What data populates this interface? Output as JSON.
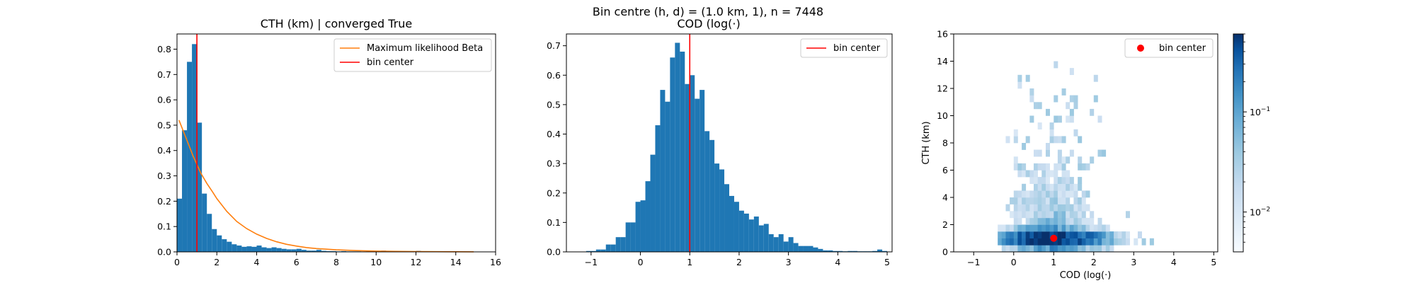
{
  "figure": {
    "suptitle": "Bin centre (h, d) = (1.0 km, 1), n = 7448"
  },
  "chart_data": [
    {
      "type": "bar",
      "title": "CTH (km) | converged True",
      "xlabel": "",
      "ylabel": "",
      "xlim": [
        0,
        16
      ],
      "ylim": [
        0,
        0.86
      ],
      "xticks": [
        0,
        2,
        4,
        6,
        8,
        10,
        12,
        14,
        16
      ],
      "yticks": [
        0.0,
        0.1,
        0.2,
        0.3,
        0.4,
        0.5,
        0.6,
        0.7,
        0.8
      ],
      "bin_edges_start": 0.0,
      "bin_width": 0.25,
      "values": [
        0.21,
        0.48,
        0.75,
        0.82,
        0.51,
        0.23,
        0.15,
        0.09,
        0.065,
        0.05,
        0.04,
        0.03,
        0.025,
        0.02,
        0.022,
        0.02,
        0.025,
        0.018,
        0.015,
        0.018,
        0.015,
        0.012,
        0.01,
        0.01,
        0.012,
        0.008,
        0.005,
        0.005,
        0.008,
        0.004,
        0.003,
        0.003,
        0.002,
        0.003,
        0.002,
        0.002,
        0.002,
        0.001,
        0.002,
        0.001,
        0.003,
        0.005,
        0.003,
        0.001,
        0.001,
        0.001,
        0.001,
        0.002,
        0.004,
        0.002,
        0.001,
        0.001,
        0.001,
        0.001,
        0.001,
        0.002,
        0.001,
        0.001,
        0.001,
        0.001
      ],
      "bar_color": "#1f77b4",
      "series": [
        {
          "name": "Maximum likelihood Beta",
          "color": "#ff7f0e",
          "x": [
            0.1,
            0.2,
            0.4,
            0.6,
            0.8,
            1.0,
            1.2,
            1.5,
            1.8,
            2.0,
            2.5,
            3.0,
            3.5,
            4.0,
            4.5,
            5.0,
            5.5,
            6.0,
            6.5,
            7.0,
            8.0,
            9.0,
            10.0,
            11.0,
            12.0,
            13.0,
            14.0,
            14.9
          ],
          "y": [
            0.52,
            0.5,
            0.46,
            0.42,
            0.38,
            0.345,
            0.31,
            0.27,
            0.235,
            0.21,
            0.16,
            0.12,
            0.092,
            0.07,
            0.053,
            0.04,
            0.03,
            0.023,
            0.017,
            0.013,
            0.008,
            0.005,
            0.003,
            0.002,
            0.001,
            0.0008,
            0.0005,
            0.0003
          ]
        }
      ],
      "vline": {
        "name": "bin center",
        "x": 1.0,
        "color": "#ff0000"
      },
      "legend_position": "top-right"
    },
    {
      "type": "bar",
      "title": "COD (log(·)",
      "xlabel": "",
      "ylabel": "",
      "xlim": [
        -1.5,
        5.1
      ],
      "ylim": [
        0,
        0.74
      ],
      "xticks": [
        -1,
        0,
        1,
        2,
        3,
        4,
        5
      ],
      "yticks": [
        0.0,
        0.1,
        0.2,
        0.3,
        0.4,
        0.5,
        0.6,
        0.7
      ],
      "bin_edges_start": -1.1,
      "bin_width": 0.1,
      "values": [
        0.003,
        0.003,
        0.008,
        0.008,
        0.025,
        0.025,
        0.05,
        0.05,
        0.1,
        0.1,
        0.17,
        0.175,
        0.24,
        0.33,
        0.43,
        0.55,
        0.51,
        0.66,
        0.71,
        0.68,
        0.57,
        0.6,
        0.52,
        0.55,
        0.41,
        0.38,
        0.3,
        0.28,
        0.23,
        0.19,
        0.17,
        0.14,
        0.13,
        0.11,
        0.12,
        0.09,
        0.095,
        0.06,
        0.05,
        0.06,
        0.035,
        0.05,
        0.03,
        0.02,
        0.02,
        0.02,
        0.015,
        0.01,
        0.005,
        0.005,
        0.003,
        0.003,
        0.002,
        0.003,
        0.003,
        0.002,
        0.002,
        0.002,
        0.003,
        0.008,
        0.003
      ],
      "bar_color": "#1f77b4",
      "vline": {
        "name": "bin center",
        "x": 1.0,
        "color": "#ff0000"
      },
      "legend_position": "top-right"
    },
    {
      "type": "heatmap",
      "title": "",
      "xlabel": "COD (log(·)",
      "ylabel": "CTH (km)",
      "xlim": [
        -1.5,
        5.1
      ],
      "ylim": [
        0,
        16
      ],
      "xticks": [
        -1,
        0,
        1,
        2,
        3,
        4,
        5
      ],
      "yticks": [
        0,
        2,
        4,
        6,
        8,
        10,
        12,
        14,
        16
      ],
      "colormap": "Blues",
      "color_scale": "log",
      "colorbar_range": [
        0.004,
        0.6
      ],
      "colorbar_ticks": [
        {
          "value": 0.1,
          "base": "10",
          "exp": "−1"
        },
        {
          "value": 0.01,
          "base": "10",
          "exp": "−2"
        }
      ],
      "point": {
        "name": "bin center",
        "x": 1.0,
        "y": 1.0,
        "color": "#ff0000"
      },
      "legend_position": "top-right"
    }
  ]
}
